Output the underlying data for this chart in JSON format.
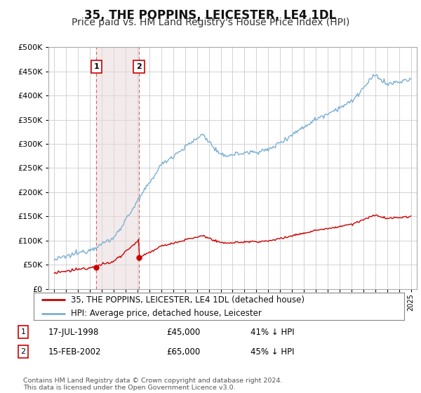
{
  "title": "35, THE POPPINS, LEICESTER, LE4 1DL",
  "subtitle": "Price paid vs. HM Land Registry's House Price Index (HPI)",
  "title_fontsize": 12,
  "subtitle_fontsize": 10,
  "ytick_values": [
    0,
    50000,
    100000,
    150000,
    200000,
    250000,
    300000,
    350000,
    400000,
    450000,
    500000
  ],
  "ylim": [
    0,
    500000
  ],
  "xlim_start": 1994.5,
  "xlim_end": 2025.5,
  "background_color": "#ffffff",
  "grid_color": "#cccccc",
  "hpi_color": "#7ab0d4",
  "price_color": "#cc0000",
  "transaction1": {
    "label": "1",
    "date": "17-JUL-1998",
    "price": 45000,
    "year": 1998.54,
    "pct": "41% ↓ HPI"
  },
  "transaction2": {
    "label": "2",
    "date": "15-FEB-2002",
    "price": 65000,
    "year": 2002.12,
    "pct": "45% ↓ HPI"
  },
  "legend_line1": "35, THE POPPINS, LEICESTER, LE4 1DL (detached house)",
  "legend_line2": "HPI: Average price, detached house, Leicester",
  "footer": "Contains HM Land Registry data © Crown copyright and database right 2024.\nThis data is licensed under the Open Government Licence v3.0."
}
